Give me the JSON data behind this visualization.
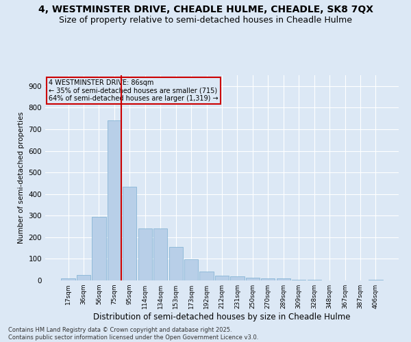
{
  "title1": "4, WESTMINSTER DRIVE, CHEADLE HULME, CHEADLE, SK8 7QX",
  "title2": "Size of property relative to semi-detached houses in Cheadle Hulme",
  "xlabel": "Distribution of semi-detached houses by size in Cheadle Hulme",
  "ylabel": "Number of semi-detached properties",
  "categories": [
    "17sqm",
    "36sqm",
    "56sqm",
    "75sqm",
    "95sqm",
    "114sqm",
    "134sqm",
    "153sqm",
    "173sqm",
    "192sqm",
    "212sqm",
    "231sqm",
    "250sqm",
    "270sqm",
    "289sqm",
    "309sqm",
    "328sqm",
    "348sqm",
    "367sqm",
    "387sqm",
    "406sqm"
  ],
  "values": [
    8,
    25,
    295,
    740,
    435,
    240,
    240,
    155,
    97,
    40,
    22,
    20,
    13,
    10,
    10,
    4,
    2,
    1,
    0,
    0,
    3
  ],
  "bar_color": "#b8cfe8",
  "bar_edge_color": "#7aaed0",
  "vline_color": "#cc0000",
  "vline_bin": 3,
  "annotation_text": "4 WESTMINSTER DRIVE: 86sqm\n← 35% of semi-detached houses are smaller (715)\n64% of semi-detached houses are larger (1,319) →",
  "annotation_box_color": "#cc0000",
  "ylim": [
    0,
    950
  ],
  "yticks": [
    0,
    100,
    200,
    300,
    400,
    500,
    600,
    700,
    800,
    900
  ],
  "bg_color": "#dce8f5",
  "grid_color": "#ffffff",
  "footer": "Contains HM Land Registry data © Crown copyright and database right 2025.\nContains public sector information licensed under the Open Government Licence v3.0.",
  "title_fontsize": 10,
  "subtitle_fontsize": 9,
  "footer_fontsize": 6
}
